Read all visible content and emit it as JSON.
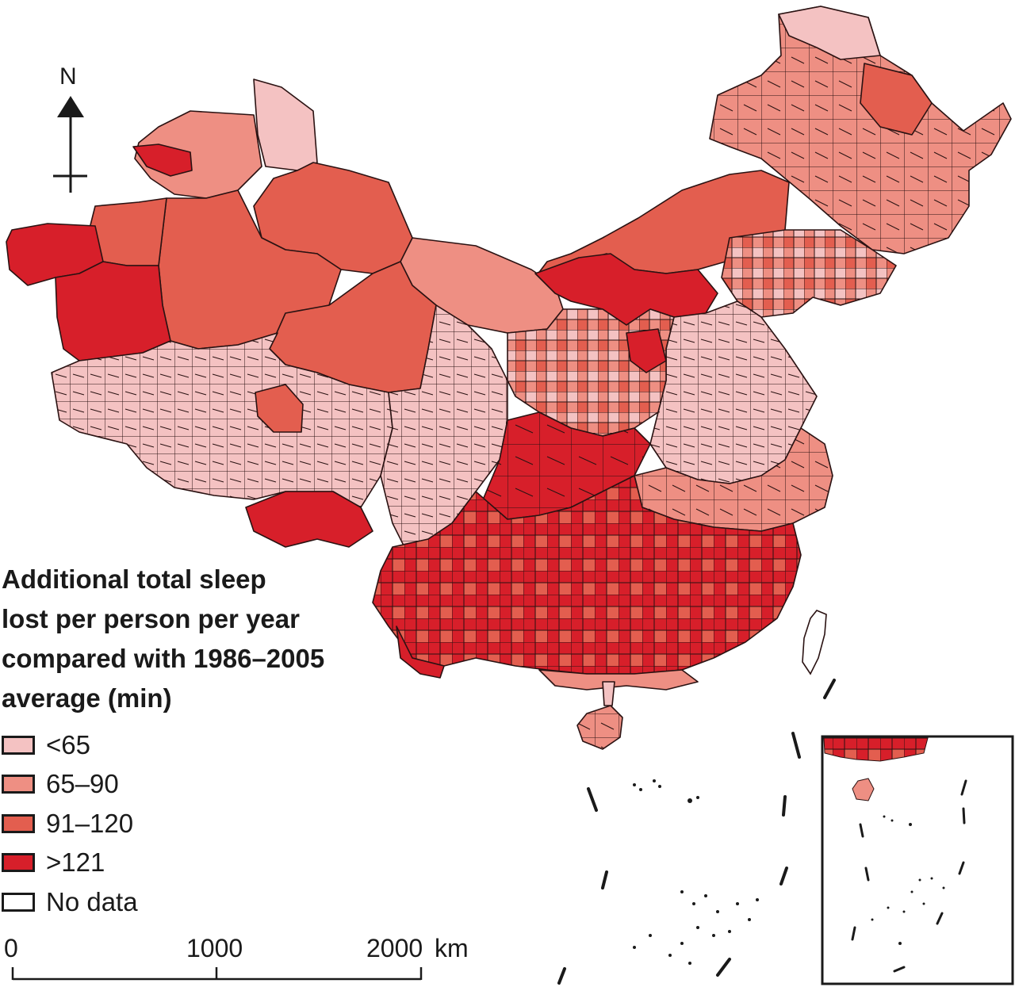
{
  "north_label": "N",
  "legend": {
    "title_lines": [
      "Additional total sleep",
      "lost per person per year",
      "compared with 1986–2005",
      "average (min)"
    ],
    "items": [
      {
        "label": "<65",
        "color": "#f4c2c2"
      },
      {
        "label": "65–90",
        "color": "#ee8f83"
      },
      {
        "label": "91–120",
        "color": "#e35e4f"
      },
      {
        "label": ">121",
        "color": "#d71f2a"
      },
      {
        "label": "No data",
        "color": "#ffffff"
      }
    ]
  },
  "scale_bar": {
    "tick_0": "0",
    "tick_1000": "1000",
    "tick_2000": "2000",
    "unit": "km"
  }
}
